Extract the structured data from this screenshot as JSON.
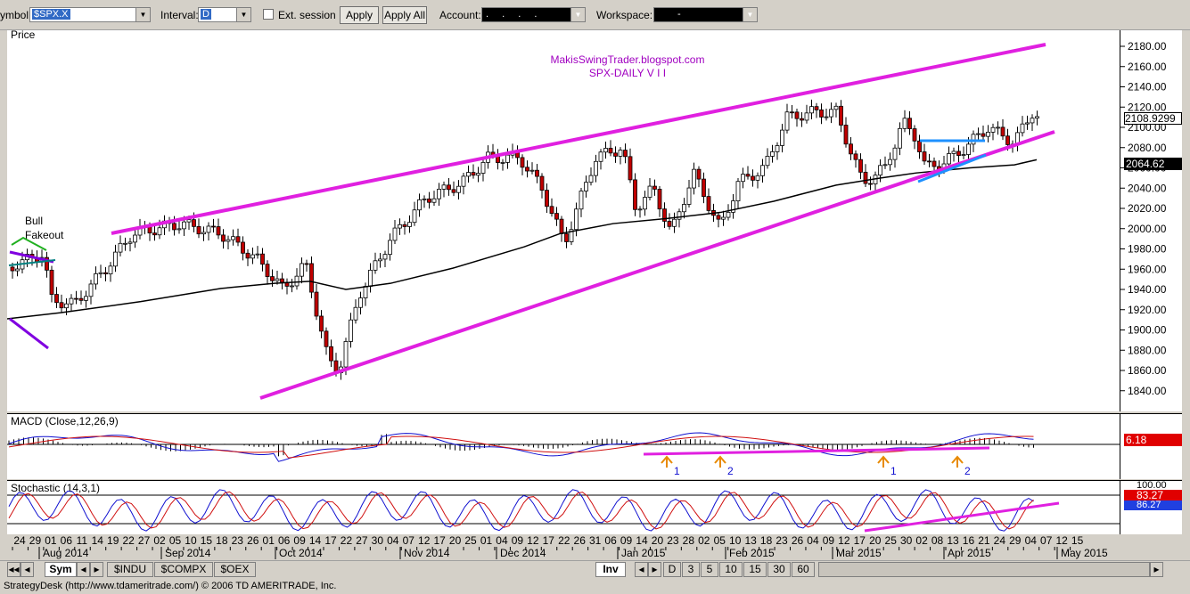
{
  "toolbar": {
    "symbol_label": "ymbol:",
    "symbol_value": "$SPX.X",
    "interval_label": "Interval:",
    "interval_value": "D",
    "ext_session_label": "Ext. session",
    "apply_label": "Apply",
    "apply_all_label": "Apply All",
    "account_label": "Account:",
    "account_value": ". . . .",
    "workspace_label": "Workspace:",
    "workspace_value": "-"
  },
  "chart": {
    "price_title": "Price",
    "watermark_line1": "MakisSwingTrader.blogspot.com",
    "watermark_line2": "SPX-DAILY  V I I",
    "annotation_bull": "Bull",
    "annotation_fakeout": "Fakeout",
    "last_price": "2108.9299",
    "ma_value": "2064.62",
    "price_ticks": [
      "2180.00",
      "2160.00",
      "2140.00",
      "2120.00",
      "2100.00",
      "2080.00",
      "2060.00",
      "2040.00",
      "2020.00",
      "2000.00",
      "1980.00",
      "1960.00",
      "1940.00",
      "1920.00",
      "1900.00",
      "1880.00",
      "1860.00",
      "1840.00"
    ],
    "macd_title": "MACD (Close,12,26,9)",
    "macd_value": "6.18",
    "macd_marks": [
      "1",
      "2",
      "1",
      "2"
    ],
    "stoch_title": "Stochastic (14,3,1)",
    "stoch_ticks": [
      "100.00"
    ],
    "stoch_value1": "83.27",
    "stoch_value2": "86.27",
    "day_labels": [
      "24",
      "29",
      "01",
      "06",
      "11",
      "14",
      "19",
      "22",
      "27",
      "02",
      "05",
      "10",
      "15",
      "18",
      "23",
      "26",
      "01",
      "06",
      "09",
      "14",
      "17",
      "22",
      "27",
      "30",
      "04",
      "07",
      "12",
      "17",
      "20",
      "25",
      "01",
      "04",
      "09",
      "12",
      "17",
      "22",
      "26",
      "31",
      "06",
      "09",
      "14",
      "20",
      "23",
      "28",
      "02",
      "05",
      "10",
      "13",
      "18",
      "23",
      "26",
      "04",
      "09",
      "12",
      "17",
      "20",
      "25",
      "30",
      "02",
      "08",
      "13",
      "16",
      "21",
      "24",
      "29",
      "04",
      "07",
      "12",
      "15"
    ],
    "month_labels": [
      "Aug 2014",
      "Sep 2014",
      "Oct 2014",
      "Nov 2014",
      "Dec 2014",
      "Jan 2015",
      "Feb 2015",
      "Mar 2015",
      "Apr 2015",
      "May 2015"
    ],
    "colors": {
      "trend": "#e020e0",
      "ma": "#000000",
      "blue": "#1e90ff",
      "macd": "#1010d0",
      "signal": "#d01010",
      "arrow": "#e88a00"
    }
  },
  "bottom": {
    "sym_tab": "Sym",
    "tabs": [
      "$INDU",
      "$COMPX",
      "$OEX"
    ],
    "inv_tab": "Inv",
    "intervals": [
      "D",
      "3",
      "5",
      "10",
      "15",
      "30",
      "60"
    ]
  },
  "status": "StrategyDesk (http://www.tdameritrade.com/) © 2006 TD AMERITRADE, Inc."
}
